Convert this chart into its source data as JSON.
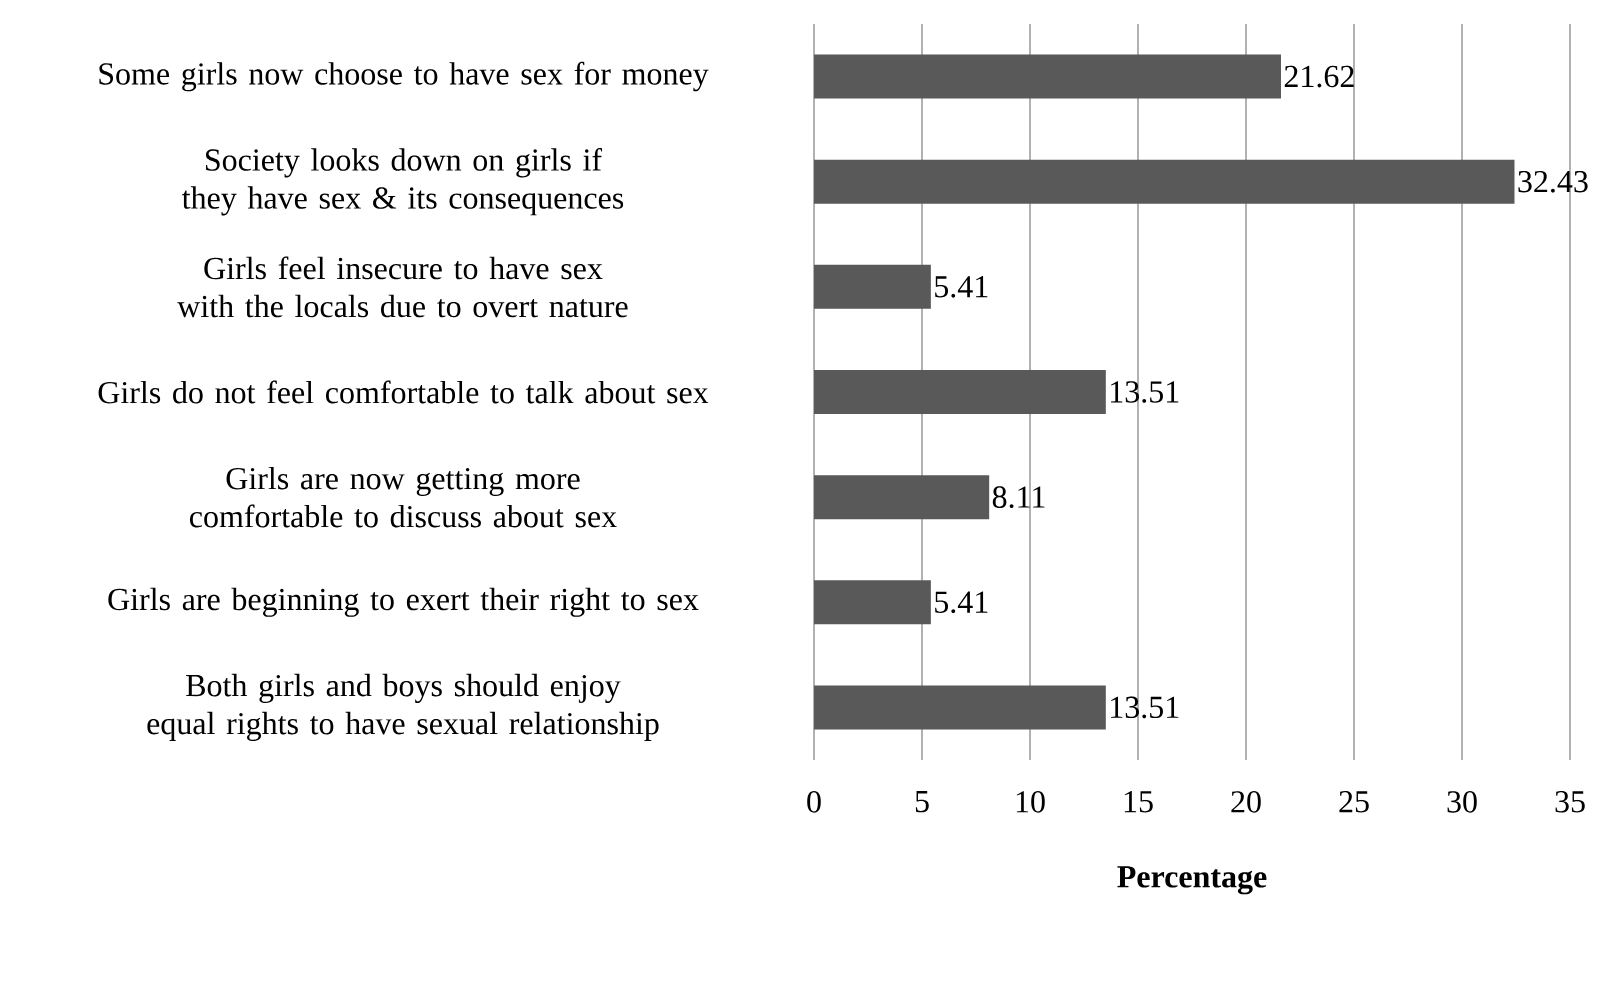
{
  "chart_data": {
    "type": "bar",
    "orientation": "horizontal",
    "categories": [
      "Some girls now choose to have sex for money",
      "Society looks down on girls if they have sex & its consequences",
      "Girls feel insecure to have sex with the locals due to overt nature",
      "Girls do not feel comfortable to talk about sex",
      "Girls are now getting more comfortable to discuss about sex",
      "Girls are beginning to exert their right to sex",
      "Both girls and boys should enjoy equal rights to have sexual relationship"
    ],
    "values": [
      21.62,
      32.43,
      5.41,
      13.51,
      8.11,
      5.41,
      13.51
    ],
    "color": "#595959",
    "xlabel": "Percentage",
    "xlim": [
      0,
      35
    ],
    "xticks": [
      0,
      5,
      10,
      15,
      20,
      25,
      30,
      35
    ],
    "grid": "x",
    "data_labels": true
  }
}
